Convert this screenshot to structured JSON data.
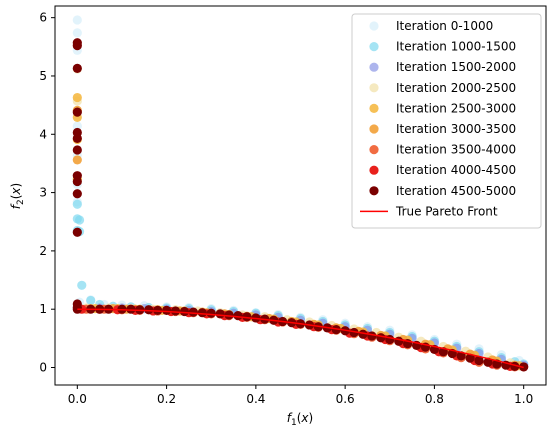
{
  "chart_data": {
    "type": "scatter",
    "title": "",
    "xlabel": "f₁(x)",
    "ylabel": "f₂(x)",
    "xlim": [
      -0.05,
      1.05
    ],
    "ylim": [
      -0.3,
      6.2
    ],
    "xticks": [
      0.0,
      0.2,
      0.4,
      0.6,
      0.8,
      1.0
    ],
    "xtick_labels": [
      "0.0",
      "0.2",
      "0.4",
      "0.6",
      "0.8",
      "1.0"
    ],
    "yticks": [
      0,
      1,
      2,
      3,
      4,
      5,
      6
    ],
    "ytick_labels": [
      "0",
      "1",
      "2",
      "3",
      "4",
      "5",
      "6"
    ],
    "grid": false,
    "legend_position": "top-right",
    "series": [
      {
        "name": "Iteration 0-1000",
        "color": "#d5eefa",
        "alpha": 0.7,
        "front_offset": 0.04,
        "x": [
          0.0,
          0.0,
          0.0,
          0.0,
          0.0,
          0.0,
          0.0,
          0.005,
          0.03,
          0.06,
          0.1,
          0.15,
          0.2,
          0.25,
          0.3,
          0.35,
          0.4,
          0.45,
          0.5,
          0.55,
          0.6,
          0.65,
          0.7,
          0.75,
          0.8,
          0.85,
          0.9,
          0.95,
          0.99
        ],
        "y": [
          5.92,
          5.7,
          5.4,
          4.1,
          3.6,
          3.1,
          2.8,
          1.08,
          1.12,
          1.04,
          1.03,
          1.02,
          1.0,
          0.99,
          0.97,
          0.94,
          0.9,
          0.87,
          0.82,
          0.78,
          0.72,
          0.66,
          0.6,
          0.52,
          0.44,
          0.36,
          0.28,
          0.18,
          0.08
        ]
      },
      {
        "name": "Iteration 1000-1500",
        "color": "#7fd8f0",
        "alpha": 0.7,
        "front_offset": 0.03,
        "x": [
          0.0,
          0.0,
          0.0,
          0.005,
          0.005,
          0.01,
          0.03,
          0.05,
          0.08,
          0.12,
          0.16,
          0.2,
          0.25,
          0.3,
          0.35,
          0.4,
          0.45,
          0.5,
          0.55,
          0.6,
          0.65,
          0.7,
          0.75,
          0.8,
          0.85,
          0.9,
          0.95,
          0.98,
          1.0
        ],
        "y": [
          2.77,
          2.52,
          2.32,
          2.5,
          2.3,
          1.38,
          1.12,
          1.05,
          1.02,
          1.01,
          1.0,
          0.99,
          0.98,
          0.96,
          0.93,
          0.9,
          0.86,
          0.81,
          0.76,
          0.7,
          0.64,
          0.57,
          0.5,
          0.42,
          0.33,
          0.24,
          0.14,
          0.07,
          0.03
        ]
      },
      {
        "name": "Iteration 1500-2000",
        "color": "#8a96e6",
        "alpha": 0.7,
        "front_offset": 0.02,
        "x": [
          0.0,
          0.05,
          0.1,
          0.15,
          0.2,
          0.25,
          0.3,
          0.35,
          0.4,
          0.45,
          0.5,
          0.55,
          0.6,
          0.65,
          0.7,
          0.75,
          0.8,
          0.85,
          0.9,
          0.95,
          1.0
        ],
        "y": [
          1.02,
          1.0,
          1.0,
          0.99,
          0.98,
          0.96,
          0.94,
          0.91,
          0.88,
          0.84,
          0.79,
          0.74,
          0.68,
          0.62,
          0.55,
          0.48,
          0.4,
          0.31,
          0.22,
          0.12,
          0.02
        ]
      },
      {
        "name": "Iteration 2000-2500",
        "color": "#f2e3b0",
        "alpha": 0.8,
        "front_offset": 0.02,
        "x": [
          0.0,
          0.0,
          0.0,
          0.02,
          0.07,
          0.12,
          0.17,
          0.22,
          0.27,
          0.32,
          0.37,
          0.42,
          0.47,
          0.52,
          0.57,
          0.62,
          0.67,
          0.72,
          0.77,
          0.82,
          0.87,
          0.92,
          0.97
        ],
        "y": [
          5.1,
          4.55,
          3.2,
          1.0,
          1.0,
          0.99,
          0.98,
          0.97,
          0.95,
          0.92,
          0.88,
          0.85,
          0.8,
          0.76,
          0.7,
          0.64,
          0.58,
          0.5,
          0.43,
          0.34,
          0.26,
          0.16,
          0.06
        ]
      },
      {
        "name": "Iteration 2500-3000",
        "color": "#f5b945",
        "alpha": 0.9,
        "front_offset": 0.01,
        "x": [
          0.0,
          0.0,
          0.0,
          0.0,
          0.04,
          0.09,
          0.14,
          0.19,
          0.24,
          0.29,
          0.34,
          0.39,
          0.44,
          0.49,
          0.54,
          0.59,
          0.64,
          0.69,
          0.74,
          0.79,
          0.84,
          0.89,
          0.94,
          0.99
        ],
        "y": [
          4.62,
          4.28,
          3.9,
          3.22,
          1.0,
          1.0,
          0.99,
          0.97,
          0.96,
          0.93,
          0.9,
          0.86,
          0.82,
          0.77,
          0.72,
          0.66,
          0.6,
          0.53,
          0.46,
          0.38,
          0.29,
          0.2,
          0.1,
          0.02
        ]
      },
      {
        "name": "Iteration 3000-3500",
        "color": "#f2a440",
        "alpha": 0.95,
        "front_offset": 0.01,
        "x": [
          0.0,
          0.0,
          0.03,
          0.08,
          0.11,
          0.13,
          0.18,
          0.23,
          0.28,
          0.33,
          0.38,
          0.43,
          0.48,
          0.53,
          0.58,
          0.63,
          0.68,
          0.73,
          0.78,
          0.83,
          0.88,
          0.93,
          0.98
        ],
        "y": [
          4.4,
          3.55,
          1.0,
          1.0,
          0.99,
          0.99,
          0.98,
          0.96,
          0.94,
          0.91,
          0.87,
          0.83,
          0.78,
          0.73,
          0.67,
          0.61,
          0.54,
          0.47,
          0.39,
          0.31,
          0.22,
          0.12,
          0.03
        ]
      },
      {
        "name": "Iteration 3500-4000",
        "color": "#f06438",
        "alpha": 0.95,
        "front_offset": 0.0,
        "x": [
          0.02,
          0.06,
          0.1,
          0.14,
          0.18,
          0.22,
          0.26,
          0.3,
          0.34,
          0.38,
          0.42,
          0.46,
          0.5,
          0.54,
          0.58,
          0.62,
          0.66,
          0.7,
          0.74,
          0.78,
          0.82,
          0.86,
          0.9,
          0.94,
          0.98
        ],
        "y": [
          1.0,
          1.0,
          0.99,
          0.98,
          0.97,
          0.96,
          0.94,
          0.92,
          0.89,
          0.86,
          0.82,
          0.78,
          0.74,
          0.69,
          0.64,
          0.58,
          0.52,
          0.46,
          0.39,
          0.32,
          0.25,
          0.17,
          0.09,
          0.04,
          0.01
        ]
      },
      {
        "name": "Iteration 4000-4500",
        "color": "#e8201c",
        "alpha": 1.0,
        "front_offset": 0.0,
        "x": [
          0.01,
          0.05,
          0.09,
          0.13,
          0.17,
          0.21,
          0.25,
          0.29,
          0.33,
          0.37,
          0.41,
          0.45,
          0.49,
          0.53,
          0.57,
          0.61,
          0.65,
          0.69,
          0.73,
          0.77,
          0.81,
          0.85,
          0.89,
          0.93,
          0.97,
          1.0
        ],
        "y": [
          1.0,
          1.0,
          0.99,
          0.98,
          0.97,
          0.96,
          0.94,
          0.92,
          0.89,
          0.86,
          0.82,
          0.78,
          0.74,
          0.7,
          0.65,
          0.59,
          0.54,
          0.48,
          0.41,
          0.34,
          0.27,
          0.2,
          0.12,
          0.06,
          0.02,
          0.01
        ]
      },
      {
        "name": "Iteration 4500-5000",
        "color": "#7a0000",
        "alpha": 1.0,
        "front_offset": 0.0,
        "x": [
          0.0,
          0.0,
          0.0,
          0.0,
          0.0,
          0.0,
          0.0,
          0.0,
          0.0,
          0.0,
          0.0,
          0.0,
          0.0,
          0.0,
          0.03,
          0.05,
          0.07,
          0.1,
          0.12,
          0.14,
          0.16,
          0.18,
          0.2,
          0.22,
          0.24,
          0.26,
          0.28,
          0.3,
          0.32,
          0.34,
          0.36,
          0.38,
          0.4,
          0.42,
          0.44,
          0.46,
          0.48,
          0.5,
          0.52,
          0.54,
          0.56,
          0.58,
          0.6,
          0.62,
          0.64,
          0.66,
          0.68,
          0.7,
          0.72,
          0.74,
          0.76,
          0.78,
          0.8,
          0.82,
          0.84,
          0.86,
          0.88,
          0.9,
          0.92,
          0.94,
          0.96,
          0.98,
          1.0
        ],
        "y": [
          5.57,
          5.52,
          5.13,
          4.38,
          4.03,
          3.93,
          3.73,
          3.29,
          3.19,
          2.98,
          2.32,
          1.09,
          1.03,
          1.0,
          1.0,
          1.0,
          1.0,
          1.0,
          1.0,
          0.99,
          0.99,
          0.98,
          0.98,
          0.97,
          0.96,
          0.95,
          0.94,
          0.93,
          0.92,
          0.9,
          0.89,
          0.87,
          0.85,
          0.83,
          0.81,
          0.79,
          0.77,
          0.75,
          0.73,
          0.7,
          0.68,
          0.65,
          0.63,
          0.6,
          0.57,
          0.54,
          0.51,
          0.48,
          0.45,
          0.41,
          0.38,
          0.35,
          0.31,
          0.27,
          0.24,
          0.2,
          0.16,
          0.12,
          0.09,
          0.06,
          0.04,
          0.02,
          0.01
        ]
      }
    ],
    "lines": [
      {
        "name": "True Pareto Front",
        "color": "#ff0000",
        "x": [
          0.0,
          0.05,
          0.1,
          0.15,
          0.2,
          0.25,
          0.3,
          0.35,
          0.4,
          0.45,
          0.5,
          0.55,
          0.6,
          0.65,
          0.7,
          0.75,
          0.8,
          0.85,
          0.9,
          0.95,
          1.0
        ],
        "y": [
          1.0,
          0.9975,
          0.99,
          0.9775,
          0.96,
          0.9375,
          0.91,
          0.8775,
          0.84,
          0.7975,
          0.75,
          0.6975,
          0.64,
          0.5775,
          0.51,
          0.4375,
          0.36,
          0.2775,
          0.19,
          0.0975,
          0.0
        ]
      }
    ]
  }
}
